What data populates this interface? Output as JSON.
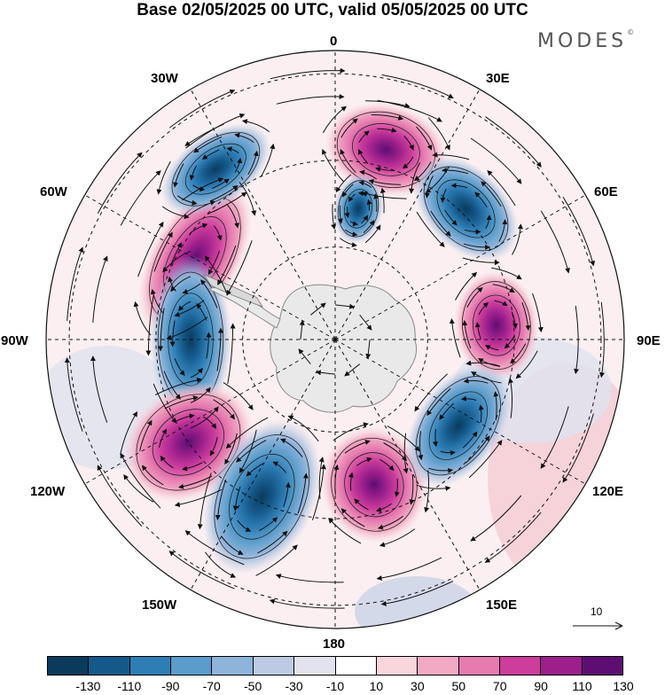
{
  "title": "Base 02/05/2025 00 UTC, valid 05/05/2025 00 UTC",
  "brand": {
    "name": "MODES",
    "mark": "©"
  },
  "longitude_labels": {
    "n0": "0",
    "n30e": "30E",
    "n60e": "60E",
    "n90e": "90E",
    "n120e": "120E",
    "n150e": "150E",
    "n180": "180",
    "n150w": "150W",
    "n120w": "120W",
    "n90w": "90W",
    "n60w": "60W",
    "n30w": "30W"
  },
  "reference_vector": {
    "label": "10"
  },
  "colorbar": {
    "tick_labels": [
      "-130",
      "-110",
      "-90",
      "-70",
      "-50",
      "-30",
      "-10",
      "10",
      "30",
      "50",
      "70",
      "90",
      "110",
      "130"
    ],
    "colors": [
      "#0b3b5c",
      "#14598a",
      "#2f7db5",
      "#5a9ccb",
      "#8fb4da",
      "#bccbe3",
      "#e2e3ef",
      "#ffffff",
      "#f9d6dc",
      "#f2aac4",
      "#e67bb0",
      "#cc3d9c",
      "#9c1f8c",
      "#5e0e73"
    ]
  },
  "map": {
    "projection": "south-polar-stereographic",
    "field": "height anomaly (shaded) with wind streamlines",
    "anomaly_centers": [
      {
        "sign": "positive",
        "lon": 15,
        "value": 110
      },
      {
        "sign": "negative",
        "lon": 45,
        "value": -130
      },
      {
        "sign": "negative",
        "lon": 10,
        "value": -50
      },
      {
        "sign": "positive",
        "lon": -60,
        "value": 90
      },
      {
        "sign": "negative",
        "lon": -35,
        "value": -90
      },
      {
        "sign": "positive",
        "lon": 85,
        "value": 90
      },
      {
        "sign": "negative",
        "lon": -90,
        "value": -90
      },
      {
        "sign": "positive",
        "lon": -125,
        "value": 110
      },
      {
        "sign": "negative",
        "lon": -155,
        "value": -130
      },
      {
        "sign": "positive",
        "lon": 165,
        "value": 110
      },
      {
        "sign": "negative",
        "lon": 125,
        "value": -110
      }
    ]
  }
}
